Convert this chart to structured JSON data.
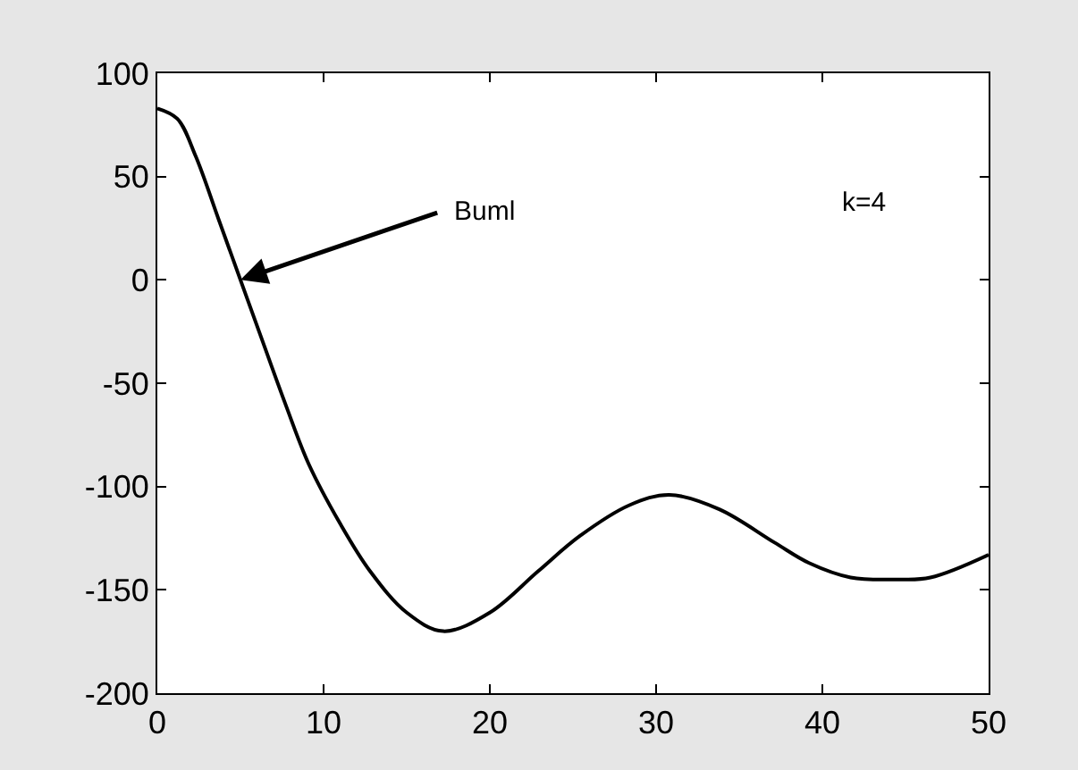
{
  "chart_data": {
    "type": "line",
    "x": [
      0,
      1.2,
      2.3,
      3.7,
      5,
      6.3,
      7.7,
      9.1,
      11,
      12.8,
      15,
      17.2,
      20,
      22.9,
      25.4,
      28.4,
      30.8,
      33.8,
      37.1,
      39.2,
      41.7,
      44.3,
      46.5,
      50
    ],
    "series": [
      {
        "color": "#000000",
        "values": [
          83,
          78,
          60,
          29,
          0,
          -29,
          -60,
          -89,
          -118,
          -141,
          -161,
          -170,
          -161,
          -141,
          -124,
          -109,
          -104,
          -111,
          -127,
          -137,
          -144,
          -145,
          -144,
          -133
        ]
      }
    ],
    "xlim": [
      0,
      50
    ],
    "xticks": [
      0,
      10,
      20,
      30,
      40,
      50
    ],
    "ylim": [
      -200,
      100
    ],
    "yticks": [
      -200,
      -150,
      -100,
      -50,
      0,
      50,
      100
    ],
    "annotations": [
      {
        "text": "Buml",
        "x": 5,
        "y": 0
      },
      "k=4"
    ],
    "marker": "none",
    "line_style": "solid"
  }
}
